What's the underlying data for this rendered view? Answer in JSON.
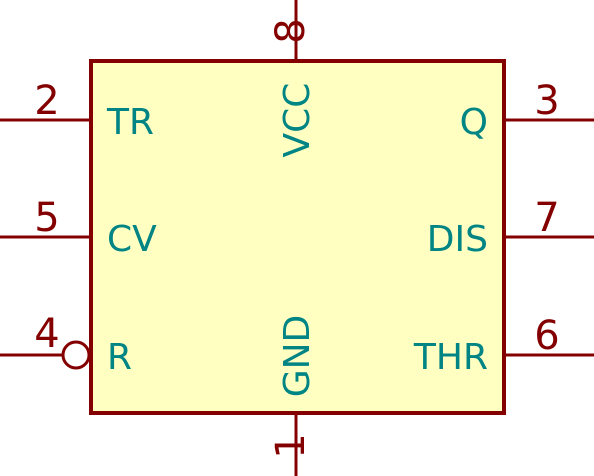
{
  "symbol": {
    "body_fill": "#FFFFC2",
    "outline_color": "#840000",
    "pin_number_color": "#840000",
    "pin_name_color": "#008484"
  },
  "pins": [
    {
      "number": "2",
      "name": "TR"
    },
    {
      "number": "5",
      "name": "CV"
    },
    {
      "number": "4",
      "name": "R",
      "inverted": true
    },
    {
      "number": "3",
      "name": "Q"
    },
    {
      "number": "7",
      "name": "DIS"
    },
    {
      "number": "6",
      "name": "THR"
    },
    {
      "number": "8",
      "name": "VCC"
    },
    {
      "number": "1",
      "name": "GND"
    }
  ]
}
